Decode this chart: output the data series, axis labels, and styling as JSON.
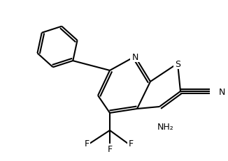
{
  "bg_color": "#ffffff",
  "line_color": "#000000",
  "line_width": 1.5,
  "font_size": 9,
  "label_N": "N",
  "label_S": "S",
  "label_CN_N": "N",
  "label_NH2": "NH₂",
  "label_F": "F"
}
